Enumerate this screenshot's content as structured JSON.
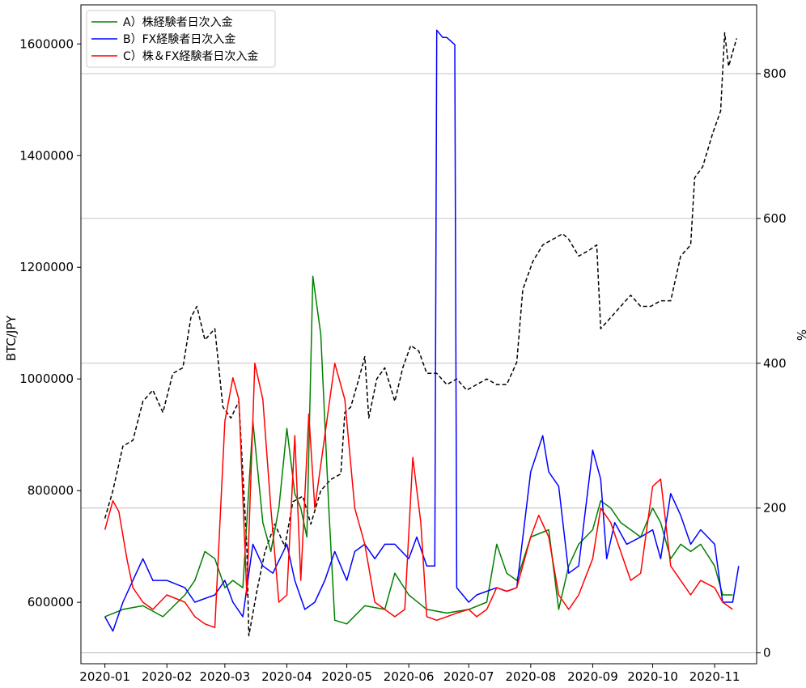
{
  "chart_data": {
    "type": "line",
    "x_ticks": [
      "2020-01",
      "2020-02",
      "2020-03",
      "2020-04",
      "2020-05",
      "2020-06",
      "2020-07",
      "2020-08",
      "2020-09",
      "2020-10",
      "2020-11"
    ],
    "left_axis": {
      "label": "BTC/JPY",
      "ticks": [
        600000,
        800000,
        1000000,
        1200000,
        1400000,
        1600000
      ],
      "ylim": [
        490000,
        1670000
      ]
    },
    "right_axis": {
      "label": "%",
      "ticks": [
        0,
        200,
        400,
        600,
        800
      ],
      "ylim": [
        -15,
        895
      ],
      "grid": true
    },
    "legend": {
      "position": "top-left",
      "entries": [
        {
          "label": "A）株経験者日次入金",
          "color": "#008000"
        },
        {
          "label": "B）FX経験者日次入金",
          "color": "#0000ff"
        },
        {
          "label": "C）株＆FX経験者日次入金",
          "color": "#ff0000"
        }
      ]
    },
    "series": [
      {
        "axis": "left",
        "color": "#000000",
        "dashed": true,
        "points": [
          [
            "2020-01-01",
            750000
          ],
          [
            "2020-01-05",
            800000
          ],
          [
            "2020-01-10",
            880000
          ],
          [
            "2020-01-15",
            890000
          ],
          [
            "2020-01-20",
            960000
          ],
          [
            "2020-01-25",
            980000
          ],
          [
            "2020-01-30",
            940000
          ],
          [
            "2020-02-04",
            1010000
          ],
          [
            "2020-02-09",
            1020000
          ],
          [
            "2020-02-13",
            1110000
          ],
          [
            "2020-02-16",
            1130000
          ],
          [
            "2020-02-20",
            1070000
          ],
          [
            "2020-02-25",
            1090000
          ],
          [
            "2020-02-29",
            950000
          ],
          [
            "2020-03-04",
            930000
          ],
          [
            "2020-03-08",
            960000
          ],
          [
            "2020-03-12",
            700000
          ],
          [
            "2020-03-13",
            540000
          ],
          [
            "2020-03-17",
            620000
          ],
          [
            "2020-03-21",
            690000
          ],
          [
            "2020-03-26",
            740000
          ],
          [
            "2020-03-31",
            700000
          ],
          [
            "2020-04-04",
            780000
          ],
          [
            "2020-04-09",
            790000
          ],
          [
            "2020-04-13",
            740000
          ],
          [
            "2020-04-18",
            800000
          ],
          [
            "2020-04-23",
            820000
          ],
          [
            "2020-04-28",
            830000
          ],
          [
            "2020-04-30",
            940000
          ],
          [
            "2020-05-03",
            950000
          ],
          [
            "2020-05-07",
            1000000
          ],
          [
            "2020-05-10",
            1040000
          ],
          [
            "2020-05-12",
            930000
          ],
          [
            "2020-05-16",
            1000000
          ],
          [
            "2020-05-20",
            1020000
          ],
          [
            "2020-05-25",
            960000
          ],
          [
            "2020-05-29",
            1020000
          ],
          [
            "2020-06-02",
            1060000
          ],
          [
            "2020-06-06",
            1050000
          ],
          [
            "2020-06-10",
            1010000
          ],
          [
            "2020-06-15",
            1010000
          ],
          [
            "2020-06-20",
            990000
          ],
          [
            "2020-06-25",
            1000000
          ],
          [
            "2020-06-30",
            980000
          ],
          [
            "2020-07-05",
            990000
          ],
          [
            "2020-07-10",
            1000000
          ],
          [
            "2020-07-15",
            990000
          ],
          [
            "2020-07-20",
            990000
          ],
          [
            "2020-07-25",
            1030000
          ],
          [
            "2020-07-28",
            1160000
          ],
          [
            "2020-08-02",
            1210000
          ],
          [
            "2020-08-07",
            1240000
          ],
          [
            "2020-08-12",
            1250000
          ],
          [
            "2020-08-17",
            1260000
          ],
          [
            "2020-08-20",
            1250000
          ],
          [
            "2020-08-25",
            1220000
          ],
          [
            "2020-08-30",
            1230000
          ],
          [
            "2020-09-03",
            1240000
          ],
          [
            "2020-09-05",
            1090000
          ],
          [
            "2020-09-10",
            1110000
          ],
          [
            "2020-09-15",
            1130000
          ],
          [
            "2020-09-20",
            1150000
          ],
          [
            "2020-09-25",
            1130000
          ],
          [
            "2020-09-30",
            1130000
          ],
          [
            "2020-10-05",
            1140000
          ],
          [
            "2020-10-10",
            1140000
          ],
          [
            "2020-10-15",
            1220000
          ],
          [
            "2020-10-20",
            1240000
          ],
          [
            "2020-10-22",
            1360000
          ],
          [
            "2020-10-26",
            1380000
          ],
          [
            "2020-10-31",
            1440000
          ],
          [
            "2020-11-04",
            1480000
          ],
          [
            "2020-11-06",
            1620000
          ],
          [
            "2020-11-08",
            1560000
          ],
          [
            "2020-11-12",
            1610000
          ]
        ]
      },
      {
        "axis": "right",
        "name": "A）株経験者日次入金",
        "color": "#008000",
        "points": [
          [
            "2020-01-01",
            50
          ],
          [
            "2020-01-10",
            60
          ],
          [
            "2020-01-20",
            65
          ],
          [
            "2020-01-30",
            50
          ],
          [
            "2020-02-10",
            80
          ],
          [
            "2020-02-15",
            100
          ],
          [
            "2020-02-20",
            140
          ],
          [
            "2020-02-25",
            130
          ],
          [
            "2020-03-01",
            90
          ],
          [
            "2020-03-05",
            100
          ],
          [
            "2020-03-10",
            90
          ],
          [
            "2020-03-15",
            320
          ],
          [
            "2020-03-20",
            180
          ],
          [
            "2020-03-24",
            140
          ],
          [
            "2020-03-28",
            200
          ],
          [
            "2020-04-01",
            310
          ],
          [
            "2020-04-05",
            220
          ],
          [
            "2020-04-08",
            200
          ],
          [
            "2020-04-11",
            160
          ],
          [
            "2020-04-14",
            520
          ],
          [
            "2020-04-18",
            440
          ],
          [
            "2020-04-22",
            200
          ],
          [
            "2020-04-25",
            45
          ],
          [
            "2020-05-01",
            40
          ],
          [
            "2020-05-10",
            65
          ],
          [
            "2020-05-20",
            60
          ],
          [
            "2020-05-25",
            110
          ],
          [
            "2020-06-01",
            80
          ],
          [
            "2020-06-10",
            60
          ],
          [
            "2020-06-20",
            55
          ],
          [
            "2020-07-01",
            60
          ],
          [
            "2020-07-10",
            70
          ],
          [
            "2020-07-15",
            150
          ],
          [
            "2020-07-20",
            110
          ],
          [
            "2020-07-25",
            100
          ],
          [
            "2020-08-01",
            160
          ],
          [
            "2020-08-10",
            170
          ],
          [
            "2020-08-15",
            60
          ],
          [
            "2020-08-20",
            120
          ],
          [
            "2020-08-25",
            150
          ],
          [
            "2020-09-01",
            170
          ],
          [
            "2020-09-05",
            210
          ],
          [
            "2020-09-10",
            200
          ],
          [
            "2020-09-15",
            180
          ],
          [
            "2020-09-20",
            170
          ],
          [
            "2020-09-25",
            160
          ],
          [
            "2020-10-01",
            200
          ],
          [
            "2020-10-05",
            180
          ],
          [
            "2020-10-10",
            130
          ],
          [
            "2020-10-15",
            150
          ],
          [
            "2020-10-20",
            140
          ],
          [
            "2020-10-25",
            150
          ],
          [
            "2020-11-01",
            120
          ],
          [
            "2020-11-05",
            80
          ],
          [
            "2020-11-10",
            80
          ]
        ]
      },
      {
        "axis": "right",
        "name": "B）FX経験者日次入金",
        "color": "#0000ff",
        "points": [
          [
            "2020-01-01",
            50
          ],
          [
            "2020-01-05",
            30
          ],
          [
            "2020-01-10",
            70
          ],
          [
            "2020-01-15",
            100
          ],
          [
            "2020-01-20",
            130
          ],
          [
            "2020-01-25",
            100
          ],
          [
            "2020-02-01",
            100
          ],
          [
            "2020-02-10",
            90
          ],
          [
            "2020-02-15",
            70
          ],
          [
            "2020-02-25",
            80
          ],
          [
            "2020-03-01",
            100
          ],
          [
            "2020-03-05",
            70
          ],
          [
            "2020-03-10",
            50
          ],
          [
            "2020-03-15",
            150
          ],
          [
            "2020-03-20",
            120
          ],
          [
            "2020-03-25",
            110
          ],
          [
            "2020-04-01",
            150
          ],
          [
            "2020-04-05",
            100
          ],
          [
            "2020-04-10",
            60
          ],
          [
            "2020-04-15",
            70
          ],
          [
            "2020-04-20",
            100
          ],
          [
            "2020-04-25",
            140
          ],
          [
            "2020-05-01",
            100
          ],
          [
            "2020-05-05",
            140
          ],
          [
            "2020-05-10",
            150
          ],
          [
            "2020-05-15",
            130
          ],
          [
            "2020-05-20",
            150
          ],
          [
            "2020-05-25",
            150
          ],
          [
            "2020-06-01",
            130
          ],
          [
            "2020-06-05",
            160
          ],
          [
            "2020-06-10",
            120
          ],
          [
            "2020-06-14",
            120
          ],
          [
            "2020-06-15",
            860
          ],
          [
            "2020-06-18",
            850
          ],
          [
            "2020-06-20",
            850
          ],
          [
            "2020-06-24",
            840
          ],
          [
            "2020-06-25",
            90
          ],
          [
            "2020-07-01",
            70
          ],
          [
            "2020-07-05",
            80
          ],
          [
            "2020-07-10",
            85
          ],
          [
            "2020-07-15",
            90
          ],
          [
            "2020-07-20",
            85
          ],
          [
            "2020-07-25",
            90
          ],
          [
            "2020-08-01",
            250
          ],
          [
            "2020-08-07",
            300
          ],
          [
            "2020-08-10",
            250
          ],
          [
            "2020-08-15",
            230
          ],
          [
            "2020-08-20",
            110
          ],
          [
            "2020-08-25",
            120
          ],
          [
            "2020-09-01",
            280
          ],
          [
            "2020-09-05",
            240
          ],
          [
            "2020-09-08",
            130
          ],
          [
            "2020-09-12",
            180
          ],
          [
            "2020-09-18",
            150
          ],
          [
            "2020-09-25",
            160
          ],
          [
            "2020-10-01",
            170
          ],
          [
            "2020-10-05",
            130
          ],
          [
            "2020-10-10",
            220
          ],
          [
            "2020-10-15",
            190
          ],
          [
            "2020-10-20",
            150
          ],
          [
            "2020-10-25",
            170
          ],
          [
            "2020-11-01",
            150
          ],
          [
            "2020-11-05",
            70
          ],
          [
            "2020-11-10",
            70
          ],
          [
            "2020-11-13",
            120
          ]
        ]
      },
      {
        "axis": "right",
        "name": "C）株＆FX経験者日次入金",
        "color": "#ff0000",
        "points": [
          [
            "2020-01-01",
            170
          ],
          [
            "2020-01-05",
            210
          ],
          [
            "2020-01-08",
            195
          ],
          [
            "2020-01-12",
            130
          ],
          [
            "2020-01-15",
            90
          ],
          [
            "2020-01-20",
            70
          ],
          [
            "2020-01-25",
            60
          ],
          [
            "2020-02-01",
            80
          ],
          [
            "2020-02-10",
            70
          ],
          [
            "2020-02-15",
            50
          ],
          [
            "2020-02-20",
            40
          ],
          [
            "2020-02-25",
            35
          ],
          [
            "2020-03-01",
            320
          ],
          [
            "2020-03-05",
            380
          ],
          [
            "2020-03-08",
            350
          ],
          [
            "2020-03-12",
            80
          ],
          [
            "2020-03-16",
            400
          ],
          [
            "2020-03-20",
            350
          ],
          [
            "2020-03-24",
            200
          ],
          [
            "2020-03-28",
            70
          ],
          [
            "2020-04-01",
            80
          ],
          [
            "2020-04-05",
            300
          ],
          [
            "2020-04-08",
            100
          ],
          [
            "2020-04-12",
            330
          ],
          [
            "2020-04-15",
            200
          ],
          [
            "2020-04-20",
            300
          ],
          [
            "2020-04-25",
            400
          ],
          [
            "2020-04-30",
            350
          ],
          [
            "2020-05-05",
            200
          ],
          [
            "2020-05-10",
            150
          ],
          [
            "2020-05-15",
            70
          ],
          [
            "2020-05-20",
            60
          ],
          [
            "2020-05-25",
            50
          ],
          [
            "2020-05-30",
            60
          ],
          [
            "2020-06-03",
            270
          ],
          [
            "2020-06-07",
            180
          ],
          [
            "2020-06-10",
            50
          ],
          [
            "2020-06-15",
            45
          ],
          [
            "2020-06-20",
            50
          ],
          [
            "2020-06-25",
            55
          ],
          [
            "2020-07-01",
            60
          ],
          [
            "2020-07-05",
            50
          ],
          [
            "2020-07-10",
            60
          ],
          [
            "2020-07-15",
            90
          ],
          [
            "2020-07-20",
            85
          ],
          [
            "2020-07-25",
            90
          ],
          [
            "2020-08-01",
            160
          ],
          [
            "2020-08-05",
            190
          ],
          [
            "2020-08-10",
            160
          ],
          [
            "2020-08-15",
            80
          ],
          [
            "2020-08-20",
            60
          ],
          [
            "2020-08-25",
            80
          ],
          [
            "2020-09-01",
            130
          ],
          [
            "2020-09-05",
            200
          ],
          [
            "2020-09-10",
            180
          ],
          [
            "2020-09-15",
            140
          ],
          [
            "2020-09-20",
            100
          ],
          [
            "2020-09-25",
            110
          ],
          [
            "2020-10-01",
            230
          ],
          [
            "2020-10-05",
            240
          ],
          [
            "2020-10-10",
            120
          ],
          [
            "2020-10-15",
            100
          ],
          [
            "2020-10-20",
            80
          ],
          [
            "2020-10-25",
            100
          ],
          [
            "2020-11-01",
            90
          ],
          [
            "2020-11-05",
            70
          ],
          [
            "2020-11-10",
            60
          ]
        ]
      }
    ]
  }
}
